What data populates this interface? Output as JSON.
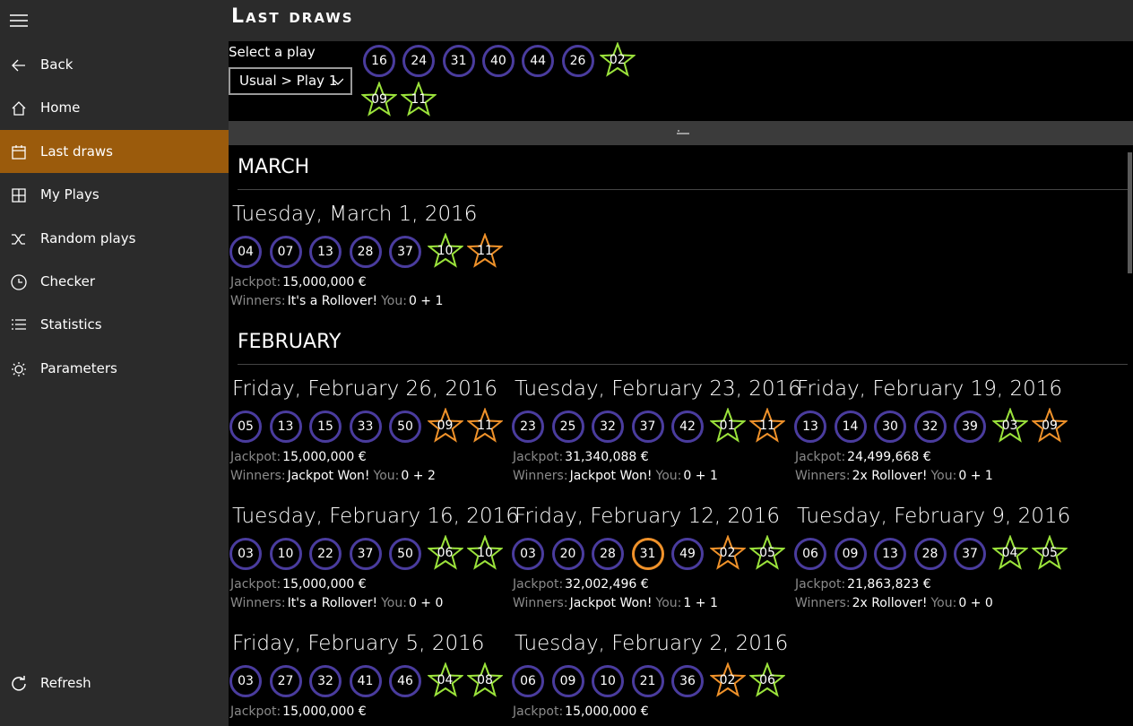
{
  "sidebar": {
    "items": [
      "Back",
      "Home",
      "Last draws",
      "My Plays",
      "Random plays",
      "Checker",
      "Statistics",
      "Parameters"
    ],
    "selected": 2,
    "refresh": "Refresh"
  },
  "header": {
    "title": "Last draws"
  },
  "play_selector": {
    "label": "Select a play",
    "selected": "Usual > Play 1"
  },
  "my_play": {
    "numbers": [
      "16",
      "24",
      "31",
      "40",
      "44",
      "26"
    ],
    "stars": [
      "02",
      "09",
      "11"
    ]
  },
  "sections": [
    {
      "month": "MARCH",
      "draws": [
        {
          "date": "Tuesday, March 1, 2016",
          "numbers": [
            "04",
            "07",
            "13",
            "28",
            "37"
          ],
          "stars": [
            "10",
            "11"
          ],
          "jackpot_label": "Jackpot:",
          "jackpot": "15,000,000 €",
          "winners_label": "Winners:",
          "winners": "It's a Rollover!",
          "you_label": "You:",
          "you": "0 + 1"
        }
      ]
    },
    {
      "month": "FEBRUARY",
      "draws": [
        {
          "date": "Friday, February 26, 2016",
          "numbers": [
            "05",
            "13",
            "15",
            "33",
            "50"
          ],
          "stars": [
            "09",
            "11"
          ],
          "jackpot_label": "Jackpot:",
          "jackpot": "15,000,000 €",
          "winners_label": "Winners:",
          "winners": "Jackpot Won!",
          "you_label": "You:",
          "you": "0 + 2"
        },
        {
          "date": "Tuesday, February 23, 2016",
          "numbers": [
            "23",
            "25",
            "32",
            "37",
            "42"
          ],
          "stars": [
            "01",
            "11"
          ],
          "jackpot_label": "Jackpot:",
          "jackpot": "31,340,088 €",
          "winners_label": "Winners:",
          "winners": "Jackpot Won!",
          "you_label": "You:",
          "you": "0 + 1"
        },
        {
          "date": "Friday, February 19, 2016",
          "numbers": [
            "13",
            "14",
            "30",
            "32",
            "39"
          ],
          "stars": [
            "03",
            "09"
          ],
          "jackpot_label": "Jackpot:",
          "jackpot": "24,499,668 €",
          "winners_label": "Winners:",
          "winners": "2x Rollover!",
          "you_label": "You:",
          "you": "0 + 1"
        },
        {
          "date": "Tuesday, February 16, 2016",
          "numbers": [
            "03",
            "10",
            "22",
            "37",
            "50"
          ],
          "stars": [
            "06",
            "10"
          ],
          "jackpot_label": "Jackpot:",
          "jackpot": "15,000,000 €",
          "winners_label": "Winners:",
          "winners": "It's a Rollover!",
          "you_label": "You:",
          "you": "0 + 0"
        },
        {
          "date": "Friday, February 12, 2016",
          "numbers": [
            "03",
            "20",
            "28",
            "31",
            "49"
          ],
          "stars": [
            "02",
            "05"
          ],
          "jackpot_label": "Jackpot:",
          "jackpot": "32,002,496 €",
          "winners_label": "Winners:",
          "winners": "Jackpot Won!",
          "you_label": "You:",
          "you": "1 + 1"
        },
        {
          "date": "Tuesday, February 9, 2016",
          "numbers": [
            "06",
            "09",
            "13",
            "28",
            "37"
          ],
          "stars": [
            "04",
            "05"
          ],
          "jackpot_label": "Jackpot:",
          "jackpot": "21,863,823 €",
          "winners_label": "Winners:",
          "winners": "2x Rollover!",
          "you_label": "You:",
          "you": "0 + 0"
        },
        {
          "date": "Friday, February 5, 2016",
          "numbers": [
            "03",
            "27",
            "32",
            "41",
            "46"
          ],
          "stars": [
            "04",
            "08"
          ],
          "jackpot_label": "Jackpot:",
          "jackpot": "15,000,000 €"
        },
        {
          "date": "Tuesday, February 2, 2016",
          "numbers": [
            "06",
            "09",
            "10",
            "21",
            "36"
          ],
          "stars": [
            "02",
            "06"
          ],
          "jackpot_label": "Jackpot:",
          "jackpot": "15,000,000 €"
        }
      ]
    }
  ]
}
